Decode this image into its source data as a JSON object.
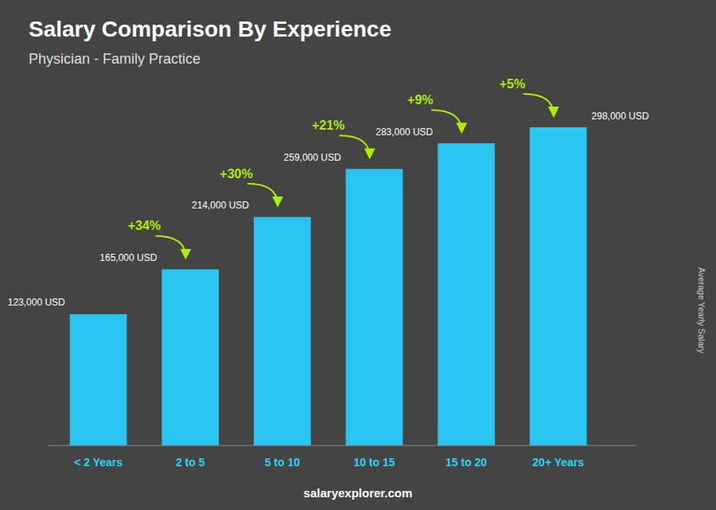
{
  "chart_data": {
    "type": "bar",
    "title": "Salary Comparison By Experience",
    "subtitle": "Physician - Family Practice",
    "y_label": "Average Yearly Salary",
    "categories": [
      "< 2 Years",
      "2 to 5",
      "5 to 10",
      "10 to 15",
      "15 to 20",
      "20+ Years"
    ],
    "values": [
      123000,
      165000,
      214000,
      259000,
      283000,
      298000
    ],
    "value_labels": [
      "123,000 USD",
      "165,000 USD",
      "214,000 USD",
      "259,000 USD",
      "283,000 USD",
      "298,000 USD"
    ],
    "data_labels": true,
    "annotations": [
      "+34%",
      "+30%",
      "+21%",
      "+9%",
      "+5%"
    ],
    "footer": "salaryexplorer.com",
    "color": "#29c4f0",
    "ylim": [
      0,
      312900
    ],
    "tick_labels": "x",
    "grid": false
  }
}
